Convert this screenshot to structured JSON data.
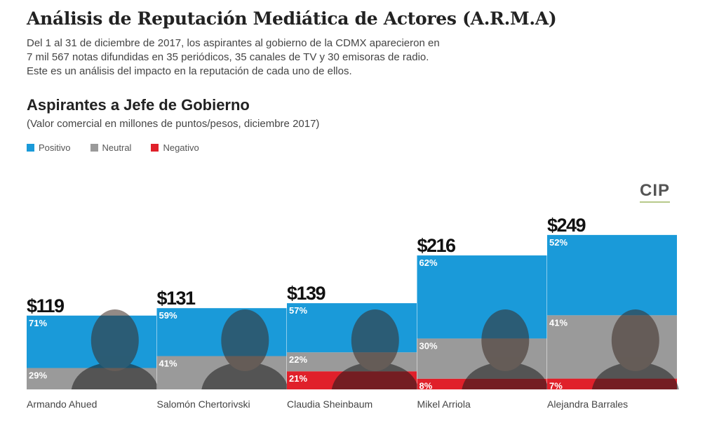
{
  "header": {
    "title": "Análisis de Reputación Mediática de Actores (A.R.M.A)",
    "intro_lines": [
      "Del 1 al 31 de diciembre de 2017, los aspirantes al gobierno de la CDMX aparecieron en",
      "7 mil 567 notas difundidas en 35 periódicos, 35 canales de TV y 30 emisoras de radio.",
      "Este es un análisis del impacto en la reputación de cada uno de ellos."
    ]
  },
  "logo": "CIP",
  "chart_data": {
    "type": "bar",
    "title": "Aspirantes a Jefe de Gobierno",
    "subtitle": "(Valor comercial en millones de puntos/pesos, diciembre 2017)",
    "legend": [
      "Positivo",
      "Neutral",
      "Negativo"
    ],
    "legend_placement": "top-left",
    "colors": {
      "Positivo": "#1a9ad9",
      "Neutral": "#9a9a9a",
      "Negativo": "#e0202a"
    },
    "categories": [
      "Armando Ahued",
      "Salomón Chertorivski",
      "Claudia Sheinbaum",
      "Mikel Arriola",
      "Alejandra Barrales"
    ],
    "totals": [
      119,
      131,
      139,
      216,
      249
    ],
    "total_labels": [
      "$119",
      "$131",
      "$139",
      "$216",
      "$249"
    ],
    "series": [
      {
        "name": "Positivo",
        "values": [
          71,
          59,
          57,
          62,
          52
        ]
      },
      {
        "name": "Neutral",
        "values": [
          29,
          41,
          22,
          30,
          41
        ]
      },
      {
        "name": "Negativo",
        "values": [
          0,
          0,
          21,
          8,
          7
        ]
      }
    ],
    "unit": "%",
    "grid": false
  }
}
